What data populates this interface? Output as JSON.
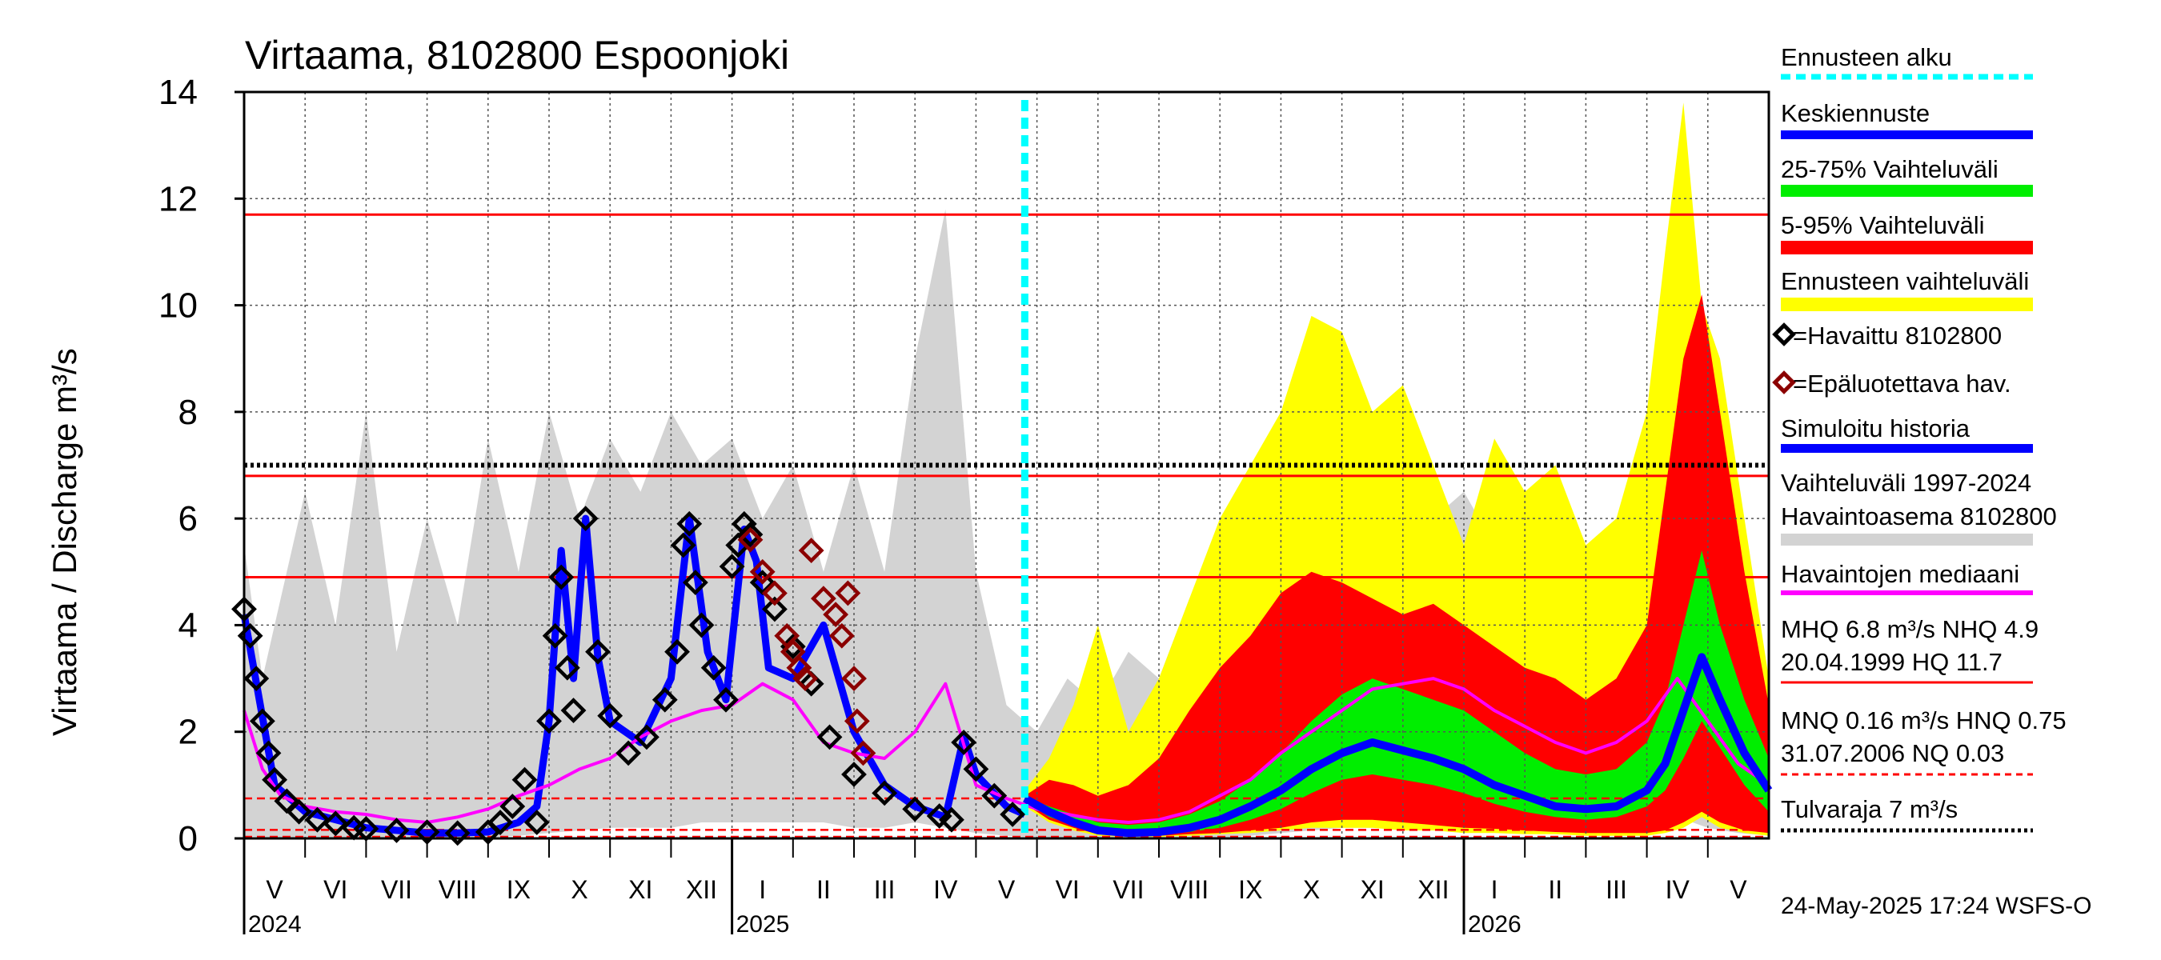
{
  "chart_data": {
    "type": "line",
    "title": "Virtaama, 8102800 Espoonjoki",
    "ylabel": "Virtaama / Discharge    m³/s",
    "ylim": [
      0,
      14
    ],
    "yticks": [
      0,
      2,
      4,
      6,
      8,
      10,
      12,
      14
    ],
    "time_range_months": [
      0,
      25
    ],
    "months": [
      "V",
      "VI",
      "VII",
      "VIII",
      "IX",
      "X",
      "XI",
      "XII",
      "I",
      "II",
      "III",
      "IV",
      "V",
      "VI",
      "VII",
      "VIII",
      "IX",
      "X",
      "XI",
      "XII",
      "I",
      "II",
      "III",
      "IV",
      "V"
    ],
    "years": [
      {
        "label": "2024",
        "at_month": 0
      },
      {
        "label": "2025",
        "at_month": 8
      },
      {
        "label": "2026",
        "at_month": 20
      }
    ],
    "forecast_start_month": 12.8,
    "reference_lines": [
      {
        "name": "HQ",
        "value": 11.7,
        "color": "#ff0000",
        "style": "solid"
      },
      {
        "name": "MHQ",
        "value": 6.8,
        "color": "#ff0000",
        "style": "solid"
      },
      {
        "name": "NHQ",
        "value": 4.9,
        "color": "#ff0000",
        "style": "solid"
      },
      {
        "name": "HNQ",
        "value": 0.75,
        "color": "#ff0000",
        "style": "dashed"
      },
      {
        "name": "MNQ",
        "value": 0.16,
        "color": "#ff0000",
        "style": "dashed"
      },
      {
        "name": "NQ",
        "value": 0.03,
        "color": "#ff0000",
        "style": "dashed"
      },
      {
        "name": "Tulvaraja",
        "value": 7.0,
        "color": "#000000",
        "style": "dotted"
      }
    ],
    "series": [
      {
        "name": "Havaittu 8102800",
        "kind": "observed",
        "color": "#000000",
        "x": [
          0,
          0.1,
          0.2,
          0.3,
          0.4,
          0.5,
          0.7,
          0.9,
          1.2,
          1.5,
          1.8,
          2.0,
          2.5,
          3.0,
          3.5,
          4.0,
          4.2,
          4.4,
          4.6,
          4.8,
          5.0,
          5.1,
          5.2,
          5.3,
          5.4,
          5.6,
          5.8,
          6.0,
          6.3,
          6.6,
          6.9,
          7.1,
          7.2,
          7.3,
          7.4,
          7.5,
          7.7,
          7.9,
          8.0,
          8.1,
          8.2,
          8.3,
          8.5,
          8.7,
          9.0,
          9.3,
          9.6,
          10.0,
          10.5,
          11.0,
          11.4,
          11.6,
          11.8,
          12.0,
          12.3,
          12.6
        ],
        "values": [
          4.3,
          3.8,
          3.0,
          2.2,
          1.6,
          1.1,
          0.7,
          0.5,
          0.35,
          0.28,
          0.2,
          0.18,
          0.15,
          0.12,
          0.1,
          0.12,
          0.3,
          0.6,
          1.1,
          0.3,
          2.2,
          3.8,
          4.9,
          3.2,
          2.4,
          6.0,
          3.5,
          2.3,
          1.6,
          1.9,
          2.6,
          3.5,
          5.5,
          5.9,
          4.8,
          4.0,
          3.2,
          2.6,
          5.1,
          5.5,
          5.9,
          5.7,
          4.8,
          4.3,
          3.6,
          2.9,
          1.9,
          1.2,
          0.85,
          0.55,
          0.42,
          0.35,
          1.8,
          1.3,
          0.8,
          0.45
        ]
      },
      {
        "name": "Epäluotettava hav.",
        "kind": "unreliable",
        "color": "#8b0000",
        "x": [
          8.3,
          8.5,
          8.7,
          8.9,
          9.0,
          9.1,
          9.2,
          9.3,
          9.5,
          9.7,
          9.8,
          9.9,
          10.0,
          10.05,
          10.15
        ],
        "values": [
          5.6,
          5.0,
          4.6,
          3.8,
          3.5,
          3.2,
          3.0,
          5.4,
          4.5,
          4.2,
          3.8,
          4.6,
          3.0,
          2.2,
          1.6
        ]
      },
      {
        "name": "Simuloitu historia",
        "kind": "simulated",
        "color": "#0000ff",
        "x": [
          0,
          0.5,
          1,
          2,
          3,
          3.5,
          4,
          4.5,
          4.8,
          5,
          5.2,
          5.4,
          5.6,
          5.8,
          6,
          6.5,
          7,
          7.3,
          7.6,
          7.9,
          8.2,
          8.4,
          8.6,
          9,
          9.5,
          10,
          10.5,
          11,
          11.5,
          11.8,
          12,
          12.5,
          12.8
        ],
        "values": [
          4.2,
          1.0,
          0.5,
          0.2,
          0.1,
          0.1,
          0.12,
          0.3,
          0.6,
          2.2,
          5.4,
          3.0,
          6.0,
          3.4,
          2.2,
          1.8,
          3.0,
          6.0,
          3.5,
          2.6,
          5.8,
          5.2,
          3.2,
          3.0,
          4.0,
          2.0,
          1.0,
          0.6,
          0.4,
          1.9,
          1.2,
          0.6,
          0.45
        ]
      },
      {
        "name": "Havaintojen mediaani",
        "kind": "median",
        "color": "#ff00ff",
        "x": [
          0,
          0.3,
          0.6,
          1,
          1.5,
          2,
          2.5,
          3,
          3.5,
          4,
          4.5,
          5,
          5.5,
          6,
          6.5,
          7,
          7.5,
          8,
          8.5,
          9,
          9.5,
          10,
          10.5,
          11,
          11.5,
          12,
          12.5,
          13,
          13.5,
          14,
          14.5,
          15,
          15.5,
          16,
          16.5,
          17,
          17.5,
          18,
          18.5,
          19,
          19.5,
          20,
          20.5,
          21,
          21.5,
          22,
          22.5,
          23,
          23.5,
          24,
          24.5,
          25
        ],
        "values": [
          2.4,
          1.3,
          0.8,
          0.6,
          0.5,
          0.45,
          0.35,
          0.3,
          0.4,
          0.55,
          0.8,
          1.0,
          1.3,
          1.5,
          1.9,
          2.2,
          2.4,
          2.5,
          2.9,
          2.6,
          1.8,
          1.6,
          1.5,
          2.0,
          2.9,
          1.0,
          0.75,
          0.55,
          0.45,
          0.35,
          0.3,
          0.35,
          0.5,
          0.8,
          1.1,
          1.6,
          2.0,
          2.4,
          2.8,
          2.9,
          3.0,
          2.8,
          2.4,
          2.1,
          1.8,
          1.6,
          1.8,
          2.2,
          3.0,
          2.2,
          1.4,
          1.0
        ]
      },
      {
        "name": "Keskiennuste",
        "kind": "forecast_mean",
        "color": "#0000ff",
        "x": [
          12.8,
          13.2,
          13.6,
          14,
          14.5,
          15,
          15.5,
          16,
          16.5,
          17,
          17.5,
          18,
          18.5,
          19,
          19.5,
          20,
          20.5,
          21,
          21.5,
          22,
          22.5,
          23,
          23.3,
          23.6,
          23.9,
          24.2,
          24.6,
          25
        ],
        "values": [
          0.75,
          0.5,
          0.3,
          0.15,
          0.1,
          0.12,
          0.2,
          0.35,
          0.6,
          0.9,
          1.3,
          1.6,
          1.8,
          1.65,
          1.5,
          1.3,
          1.0,
          0.8,
          0.6,
          0.55,
          0.6,
          0.9,
          1.4,
          2.4,
          3.4,
          2.6,
          1.6,
          0.9
        ]
      }
    ],
    "bands": [
      {
        "name": "Ennusteen vaihteluväli",
        "color": "#ffff00",
        "x": [
          12.8,
          13.2,
          13.6,
          14,
          14.5,
          15,
          15.5,
          16,
          16.5,
          17,
          17.5,
          18,
          18.5,
          19,
          19.5,
          20,
          20.5,
          21,
          21.5,
          22,
          22.5,
          23,
          23.3,
          23.6,
          23.9,
          24.2,
          24.6,
          25
        ],
        "low": [
          0.6,
          0.3,
          0.15,
          0.05,
          0.03,
          0.03,
          0.05,
          0.08,
          0.1,
          0.15,
          0.2,
          0.2,
          0.2,
          0.15,
          0.15,
          0.1,
          0.1,
          0.08,
          0.08,
          0.05,
          0.05,
          0.05,
          0.1,
          0.2,
          0.4,
          0.2,
          0.1,
          0.05
        ],
        "high": [
          0.9,
          1.5,
          2.5,
          4.0,
          2.0,
          3.0,
          4.5,
          6.0,
          7.0,
          8.0,
          9.8,
          9.5,
          8.0,
          8.5,
          7.0,
          5.5,
          7.5,
          6.5,
          7.0,
          5.5,
          6.0,
          8.0,
          11.0,
          13.8,
          10.0,
          9.0,
          6.0,
          3.0
        ]
      },
      {
        "name": "5-95% Vaihteluväli",
        "color": "#ff0000",
        "x": [
          12.8,
          13.2,
          13.6,
          14,
          14.5,
          15,
          15.5,
          16,
          16.5,
          17,
          17.5,
          18,
          18.5,
          19,
          19.5,
          20,
          20.5,
          21,
          21.5,
          22,
          22.5,
          23,
          23.3,
          23.6,
          23.9,
          24.2,
          24.6,
          25
        ],
        "low": [
          0.65,
          0.35,
          0.2,
          0.08,
          0.05,
          0.05,
          0.08,
          0.1,
          0.15,
          0.2,
          0.3,
          0.35,
          0.35,
          0.3,
          0.25,
          0.2,
          0.18,
          0.15,
          0.12,
          0.1,
          0.1,
          0.1,
          0.15,
          0.3,
          0.5,
          0.3,
          0.15,
          0.1
        ],
        "high": [
          0.8,
          1.1,
          1.0,
          0.8,
          1.0,
          1.5,
          2.4,
          3.2,
          3.8,
          4.6,
          5.0,
          4.8,
          4.5,
          4.2,
          4.4,
          4.0,
          3.6,
          3.2,
          3.0,
          2.6,
          3.0,
          4.0,
          6.5,
          9.0,
          10.2,
          8.0,
          5.0,
          2.5
        ]
      },
      {
        "name": "25-75% Vaihteluväli",
        "color": "#00ee00",
        "x": [
          12.8,
          13.2,
          13.6,
          14,
          14.5,
          15,
          15.5,
          16,
          16.5,
          17,
          17.5,
          18,
          18.5,
          19,
          19.5,
          20,
          20.5,
          21,
          21.5,
          22,
          22.5,
          23,
          23.3,
          23.6,
          23.9,
          24.2,
          24.6,
          25
        ],
        "low": [
          0.7,
          0.4,
          0.25,
          0.1,
          0.07,
          0.08,
          0.12,
          0.2,
          0.35,
          0.55,
          0.85,
          1.1,
          1.2,
          1.1,
          1.0,
          0.85,
          0.65,
          0.5,
          0.4,
          0.35,
          0.4,
          0.6,
          0.9,
          1.5,
          2.2,
          1.7,
          1.0,
          0.5
        ],
        "high": [
          0.78,
          0.6,
          0.45,
          0.3,
          0.25,
          0.3,
          0.45,
          0.7,
          1.1,
          1.6,
          2.2,
          2.7,
          3.0,
          2.8,
          2.6,
          2.4,
          2.0,
          1.6,
          1.3,
          1.2,
          1.3,
          1.8,
          2.6,
          4.0,
          5.4,
          4.0,
          2.6,
          1.5
        ]
      }
    ],
    "history_range": {
      "name": "Vaihteluväli 1997-2024 Havaintoasema 8102800",
      "color": "#d3d3d3",
      "x": [
        0,
        0.3,
        0.6,
        1,
        1.5,
        2,
        2.5,
        3,
        3.5,
        4,
        4.5,
        5,
        5.5,
        6,
        6.5,
        7,
        7.5,
        8,
        8.5,
        9,
        9.5,
        10,
        10.5,
        11,
        11.5,
        12,
        12.5,
        13,
        13.5,
        14,
        14.5,
        15,
        15.5,
        16,
        16.5,
        17,
        17.5,
        18,
        18.5,
        19,
        19.5,
        20,
        20.5,
        21,
        21.5,
        22,
        22.5,
        23,
        23.5,
        24,
        24.5,
        25
      ],
      "low": [
        0.05,
        0.02,
        0.01,
        0.01,
        0.01,
        0.01,
        0.01,
        0.01,
        0.01,
        0.02,
        0.05,
        0.1,
        0.15,
        0.2,
        0.2,
        0.2,
        0.3,
        0.3,
        0.3,
        0.3,
        0.3,
        0.2,
        0.2,
        0.3,
        0.2,
        0.1,
        0.05,
        0.02,
        0.01,
        0.01,
        0.01,
        0.01,
        0.01,
        0.02,
        0.05,
        0.1,
        0.15,
        0.2,
        0.2,
        0.2,
        0.3,
        0.3,
        0.3,
        0.3,
        0.3,
        0.2,
        0.2,
        0.3,
        0.4,
        0.2,
        0.1,
        0.05
      ],
      "high": [
        5.5,
        3.0,
        4.5,
        6.5,
        4.0,
        8.0,
        3.5,
        6.0,
        4.0,
        7.5,
        5.0,
        8.0,
        6.0,
        7.5,
        6.5,
        8.0,
        7.0,
        7.5,
        6.0,
        7.0,
        5.0,
        7.0,
        5.0,
        9.0,
        11.8,
        5.0,
        2.5,
        2.0,
        3.0,
        2.5,
        3.5,
        3.0,
        4.5,
        5.0,
        6.0,
        7.0,
        7.5,
        6.5,
        6.5,
        7.0,
        6.0,
        6.5,
        5.5,
        6.5,
        6.0,
        5.5,
        5.0,
        8.0,
        11.8,
        7.0,
        4.0,
        3.0
      ]
    }
  },
  "legend": {
    "forecast_start": "Ennusteen alku",
    "mean_forecast": "Keskiennuste",
    "band_25_75": "25-75% Vaihteluväli",
    "band_5_95": "5-95% Vaihteluväli",
    "forecast_range": "Ennusteen vaihteluväli",
    "observed": "=Havaittu 8102800",
    "unreliable": "=Epäluotettava hav.",
    "simulated": "Simuloitu historia",
    "history_line1": "Vaihteluväli 1997-2024",
    "history_line2": " Havaintoasema 8102800",
    "median": "Havaintojen mediaani",
    "stats_high_line1": "MHQ  6.8 m³/s NHQ  4.9",
    "stats_high_line2": "20.04.1999 HQ 11.7",
    "stats_low_line1": "MNQ 0.16 m³/s HNQ 0.75",
    "stats_low_line2": "31.07.2006 NQ 0.03",
    "flood_limit": "Tulvaraja 7 m³/s"
  },
  "footer": "24-May-2025 17:24 WSFS-O",
  "colors": {
    "forecast_start": "#00ffff",
    "mean_forecast": "#0000ff",
    "band_25_75": "#00ee00",
    "band_5_95": "#ff0000",
    "forecast_range": "#ffff00",
    "observed": "#000000",
    "unreliable": "#8b0000",
    "simulated": "#0000ff",
    "history": "#d3d3d3",
    "median": "#ff00ff",
    "ref_line": "#ff0000",
    "flood": "#000000"
  }
}
